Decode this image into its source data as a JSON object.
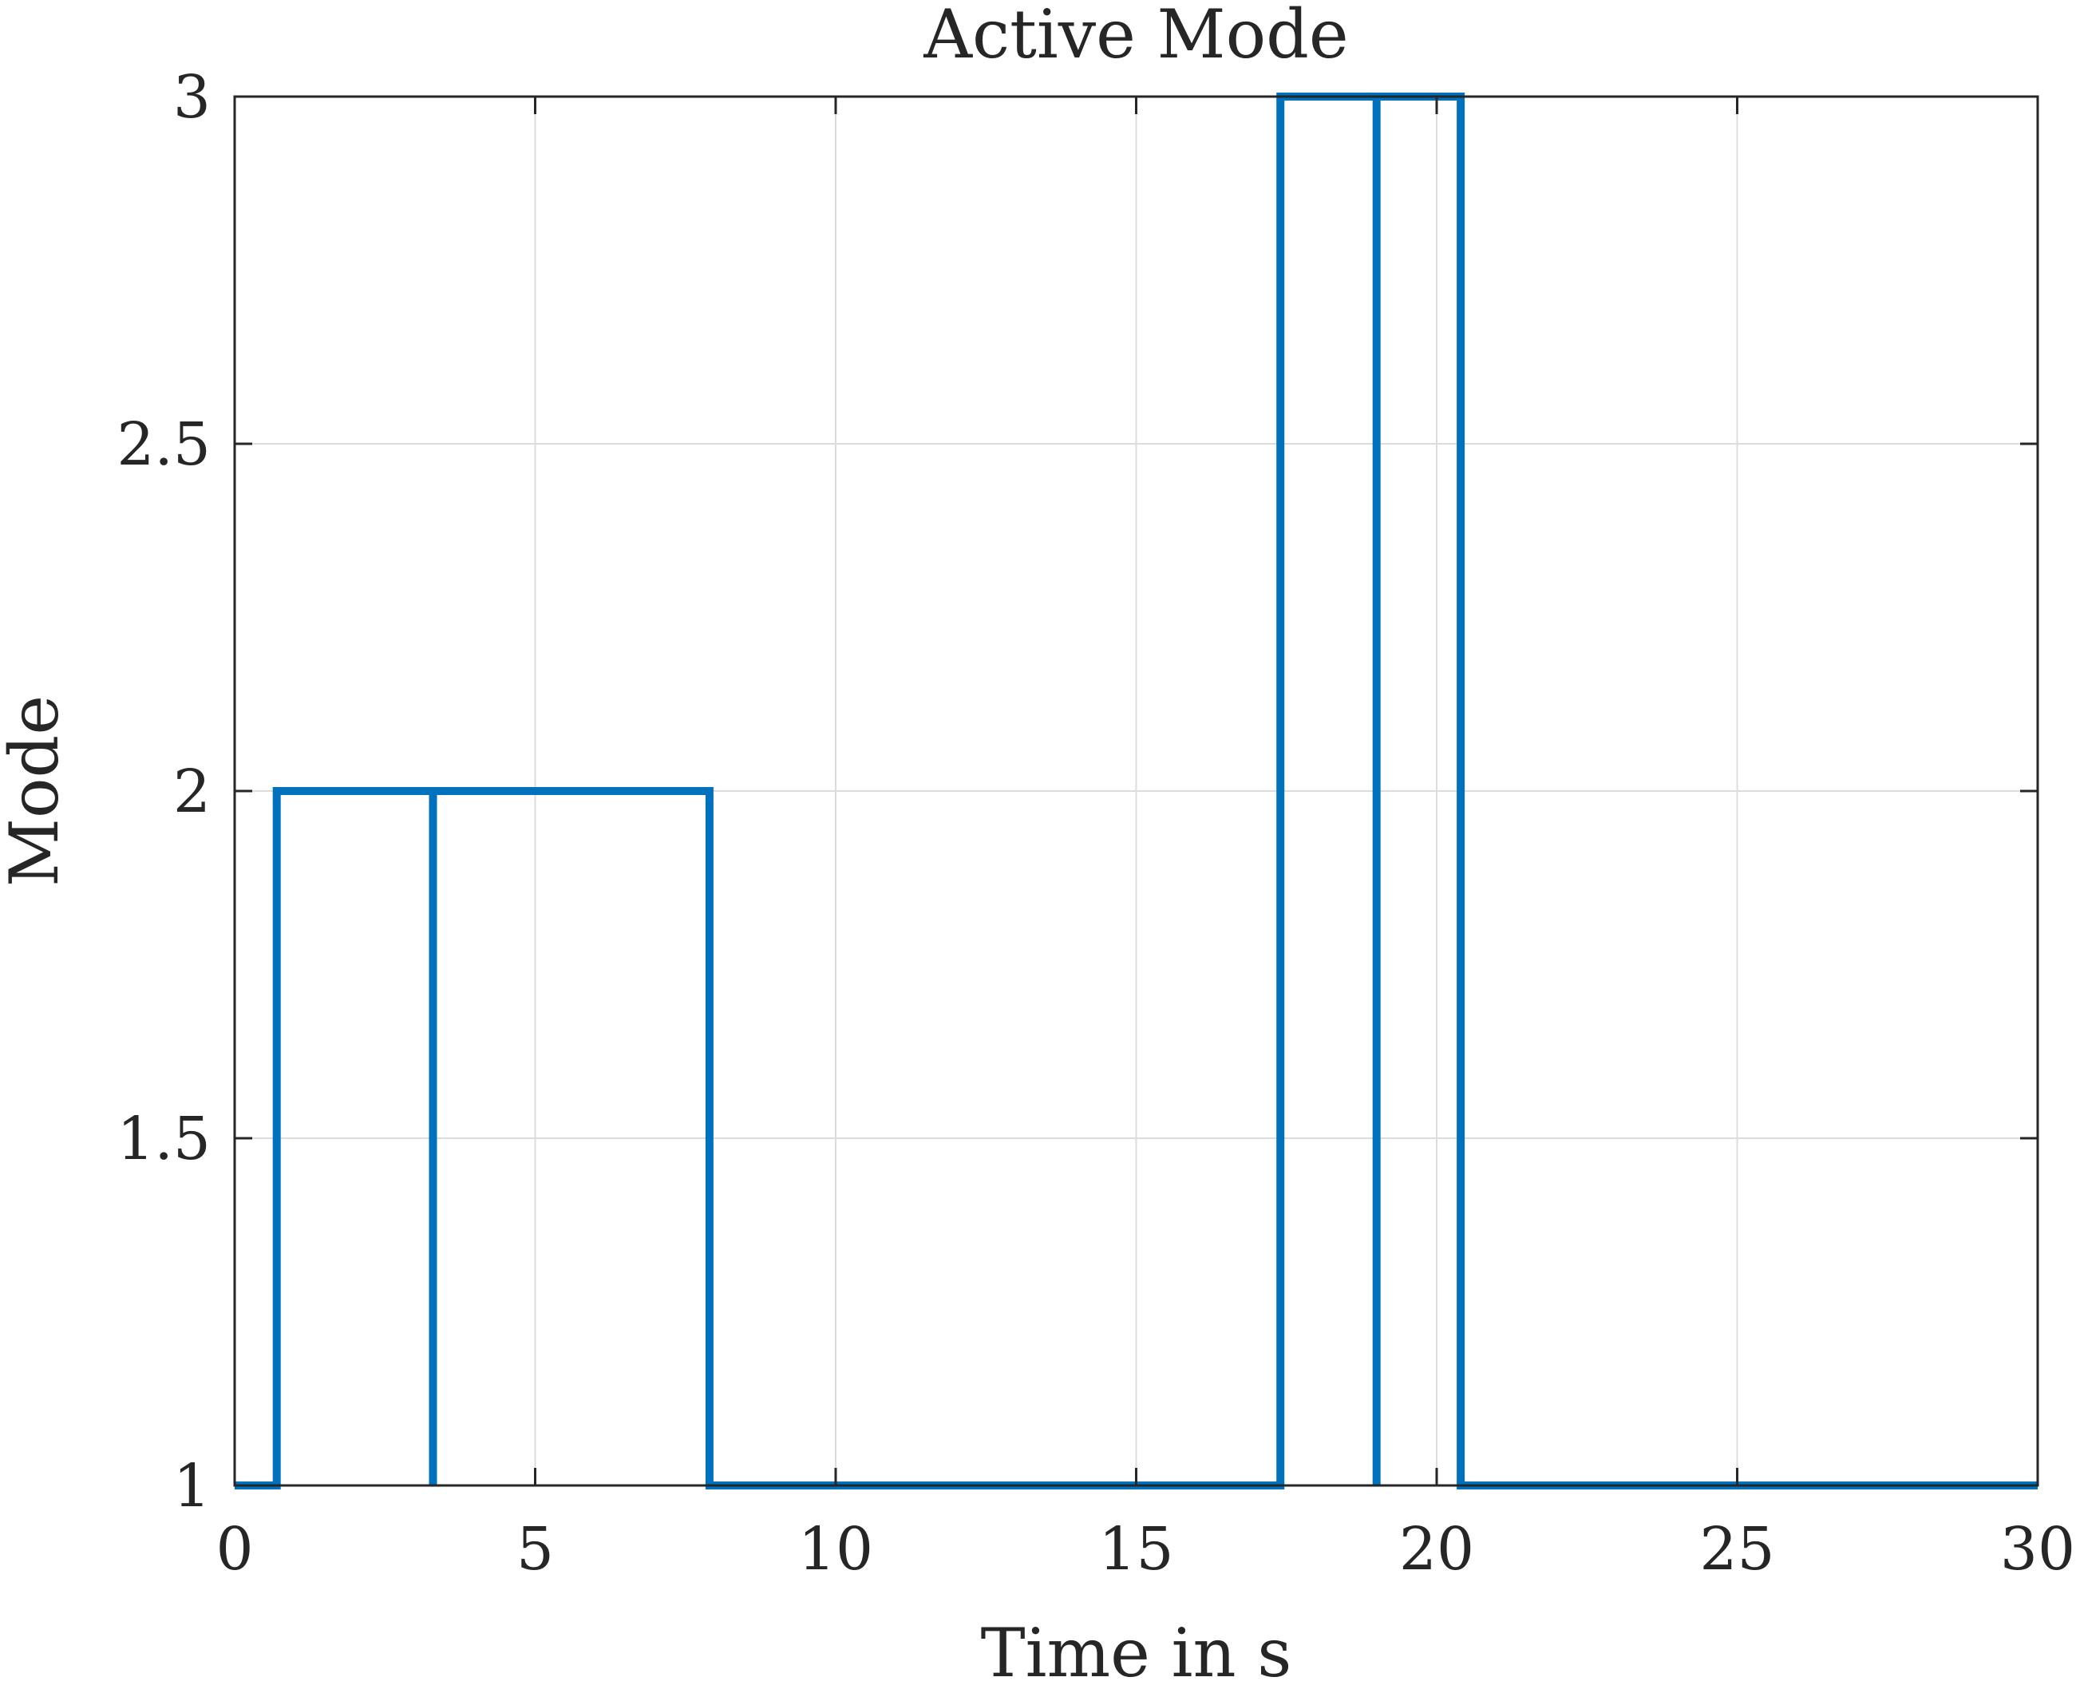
{
  "chart_data": {
    "type": "line",
    "title": "Active Mode",
    "xlabel": "Time in s",
    "ylabel": "Mode",
    "xlim": [
      0,
      30
    ],
    "ylim": [
      1,
      3
    ],
    "xticks": [
      0,
      5,
      10,
      15,
      20,
      25,
      30
    ],
    "yticks": [
      1,
      1.5,
      2,
      2.5,
      3
    ],
    "xtick_labels": [
      "0",
      "5",
      "10",
      "15",
      "20",
      "25",
      "30"
    ],
    "ytick_labels": [
      "1",
      "1.5",
      "2",
      "2.5",
      "3"
    ],
    "grid": true,
    "line_style": "step",
    "series": [
      {
        "color": "#0072BD",
        "x": [
          0,
          0.7,
          0.7,
          3.3,
          3.3,
          3.3,
          3.3,
          7.9,
          7.9,
          17.4,
          17.4,
          19.0,
          19.0,
          19.0,
          19.0,
          20.4,
          20.4,
          30
        ],
        "y": [
          1,
          1,
          2,
          2,
          1,
          1,
          2,
          2,
          1,
          1,
          3,
          3,
          1,
          1,
          3,
          3,
          1,
          1
        ]
      }
    ]
  }
}
